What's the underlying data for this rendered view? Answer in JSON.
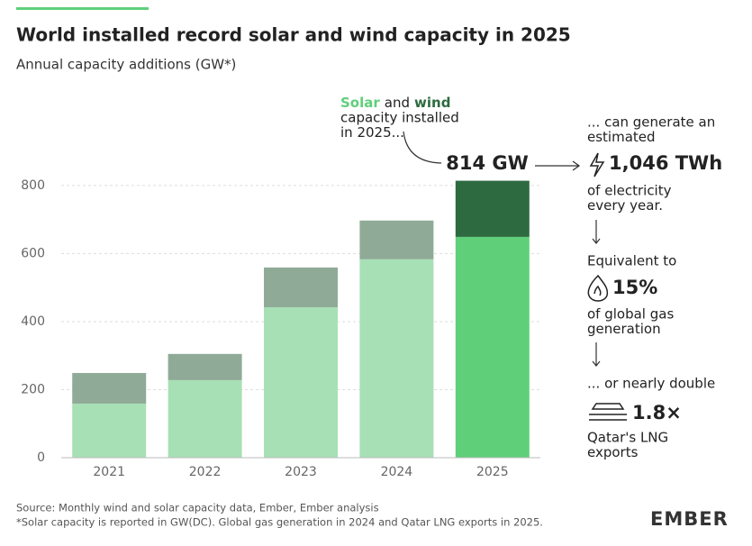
{
  "chart_data": {
    "type": "bar",
    "stacked": true,
    "title": "World installed record solar and wind capacity in 2025",
    "subtitle": "Annual capacity additions (GW*)",
    "categories": [
      "2021",
      "2022",
      "2023",
      "2024",
      "2025"
    ],
    "series": [
      {
        "name": "Solar",
        "color": "#5fcf7a",
        "colors": [
          "#a8e0b5",
          "#a8e0b5",
          "#a8e0b5",
          "#a8e0b5",
          "#5fcf7a"
        ],
        "values": [
          159,
          228,
          442,
          583,
          649
        ]
      },
      {
        "name": "wind",
        "color": "#2d6a40",
        "colors": [
          "#8fab97",
          "#8fab97",
          "#8fab97",
          "#8fab97",
          "#2d6a40"
        ],
        "values": [
          90,
          77,
          117,
          114,
          165
        ]
      }
    ],
    "ylim": [
      0,
      850
    ],
    "yticks": [
      0,
      200,
      400,
      600,
      800
    ],
    "grid": true
  },
  "annotations": {
    "legend_joiner": "and",
    "legend_lines": [
      "capacity installed",
      "in 2025..."
    ],
    "total": "814 GW",
    "generate_lines": [
      "... can generate an",
      "estimated"
    ],
    "generation": "1,046 TWh",
    "generation_lines": [
      "of electricity",
      "every year."
    ],
    "equivalent": "Equivalent to",
    "gas_share": "15%",
    "gas_lines": [
      "of global gas",
      "generation"
    ],
    "double": "... or nearly double",
    "lng_ratio": "1.8×",
    "lng_lines": [
      "Qatar's LNG",
      "exports"
    ]
  },
  "footer": {
    "source": "Source: Monthly wind and solar capacity data, Ember, Ember analysis",
    "note": "*Solar capacity is reported in GW(DC). Global gas generation in 2024 and Qatar LNG exports in 2025.",
    "logo": "EMBER"
  }
}
